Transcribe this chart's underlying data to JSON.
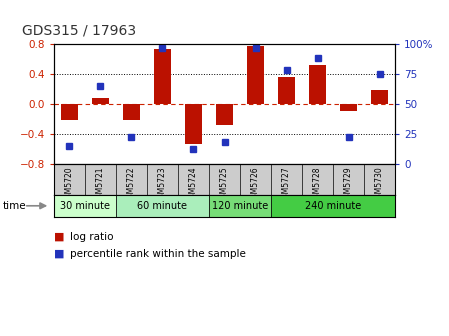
{
  "title": "GDS315 / 17963",
  "samples": [
    "GSM5720",
    "GSM5721",
    "GSM5722",
    "GSM5723",
    "GSM5724",
    "GSM5725",
    "GSM5726",
    "GSM5727",
    "GSM5728",
    "GSM5729",
    "GSM5730"
  ],
  "log_ratio": [
    -0.22,
    0.08,
    -0.22,
    0.73,
    -0.54,
    -0.28,
    0.77,
    0.35,
    0.52,
    -0.1,
    0.18
  ],
  "percentile": [
    15,
    65,
    22,
    96,
    12,
    18,
    96,
    78,
    88,
    22,
    75
  ],
  "ylim_left": [
    -0.8,
    0.8
  ],
  "ylim_right": [
    0,
    100
  ],
  "yticks_left": [
    -0.8,
    -0.4,
    0.0,
    0.4,
    0.8
  ],
  "yticks_right": [
    0,
    25,
    50,
    75,
    100
  ],
  "hline_dotted": [
    0.4,
    -0.4
  ],
  "bar_color": "#bb1100",
  "square_color": "#2233bb",
  "background_color": "#ffffff",
  "zero_line_color": "#cc2200",
  "groups": [
    {
      "label": "30 minute",
      "start": 0,
      "end": 1,
      "color": "#ccffcc"
    },
    {
      "label": "60 minute",
      "start": 2,
      "end": 4,
      "color": "#aaeebb"
    },
    {
      "label": "120 minute",
      "start": 5,
      "end": 6,
      "color": "#77dd77"
    },
    {
      "label": "240 minute",
      "start": 7,
      "end": 10,
      "color": "#44cc44"
    }
  ],
  "title_color": "#333333",
  "left_axis_color": "#cc2200",
  "right_axis_color": "#2233bb"
}
